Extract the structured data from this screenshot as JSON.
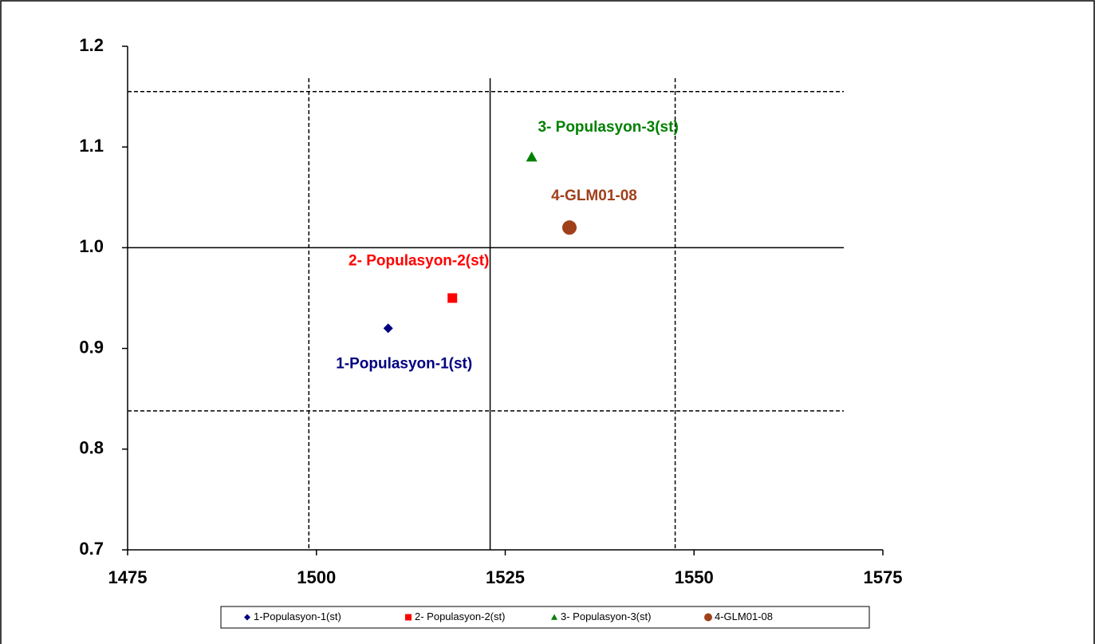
{
  "chart_data": {
    "type": "scatter",
    "xlim": [
      1475,
      1575
    ],
    "xticks": [
      1475,
      1500,
      1525,
      1550,
      1575
    ],
    "ylim": [
      0.7,
      1.2
    ],
    "yticks": [
      0.7,
      0.8,
      0.9,
      {
        "value": 1,
        "label": "1.0"
      },
      1.1,
      1.2
    ],
    "hlines": [
      {
        "value": 1.155,
        "style": "dashed"
      },
      {
        "value": 1.0,
        "style": "solid"
      },
      {
        "value": 0.838,
        "style": "dashed"
      }
    ],
    "vlines": [
      {
        "value": 1499,
        "style": "dashed"
      },
      {
        "value": 1523,
        "style": "solid"
      },
      {
        "value": 1547.5,
        "style": "dashed"
      }
    ],
    "legend": "bottom",
    "series": [
      {
        "name": "1-Populasyon-1(st)",
        "color": "#000080",
        "marker": "diamond",
        "x": [
          1509.5
        ],
        "values": [
          0.92
        ]
      },
      {
        "name": "2- Populasyon-2(st)",
        "color": "#ff0000",
        "marker": "square",
        "x": [
          1518
        ],
        "values": [
          0.95
        ]
      },
      {
        "name": "3- Populasyon-3(st)",
        "color": "#008000",
        "marker": "triangle",
        "x": [
          1528.5
        ],
        "values": [
          1.09
        ]
      },
      {
        "name": "4-GLM01-08",
        "color": "#a0401a",
        "marker": "circle",
        "x": [
          1533.5
        ],
        "values": [
          1.02
        ]
      }
    ]
  }
}
